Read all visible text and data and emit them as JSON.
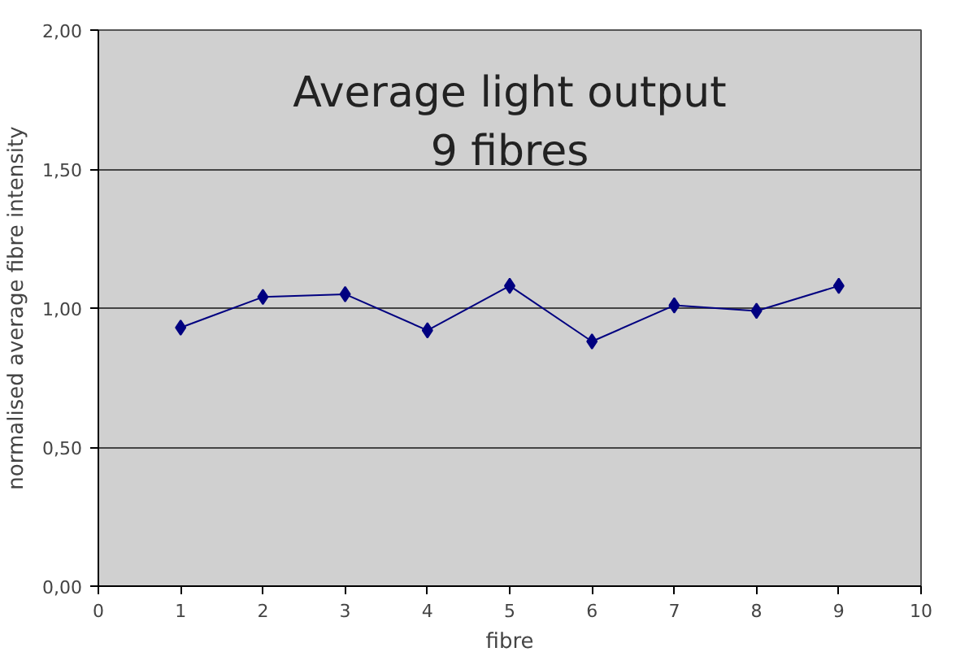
{
  "chart_data": {
    "type": "line",
    "title": "Average light output\n9 fibres",
    "xlabel": "fibre",
    "ylabel": "normalised average fibre intensity",
    "x": [
      1,
      2,
      3,
      4,
      5,
      6,
      7,
      8,
      9
    ],
    "series": [
      {
        "color": "#000080",
        "values": [
          0.93,
          1.04,
          1.05,
          0.92,
          1.08,
          0.88,
          1.01,
          0.99,
          1.08
        ]
      }
    ],
    "xlim": [
      0,
      10
    ],
    "xticks": [
      0,
      1,
      2,
      3,
      4,
      5,
      6,
      7,
      8,
      9,
      10
    ],
    "ylim": [
      0,
      2
    ],
    "yticks": [
      {
        "value": 0,
        "label": "0,00"
      },
      {
        "value": 0.5,
        "label": "0,50"
      },
      {
        "value": 1,
        "label": "1,00"
      },
      {
        "value": 1.5,
        "label": "1,50"
      },
      {
        "value": 2,
        "label": "2,00"
      }
    ],
    "grid": "y",
    "marker": "diamond",
    "line_style": "solid"
  }
}
